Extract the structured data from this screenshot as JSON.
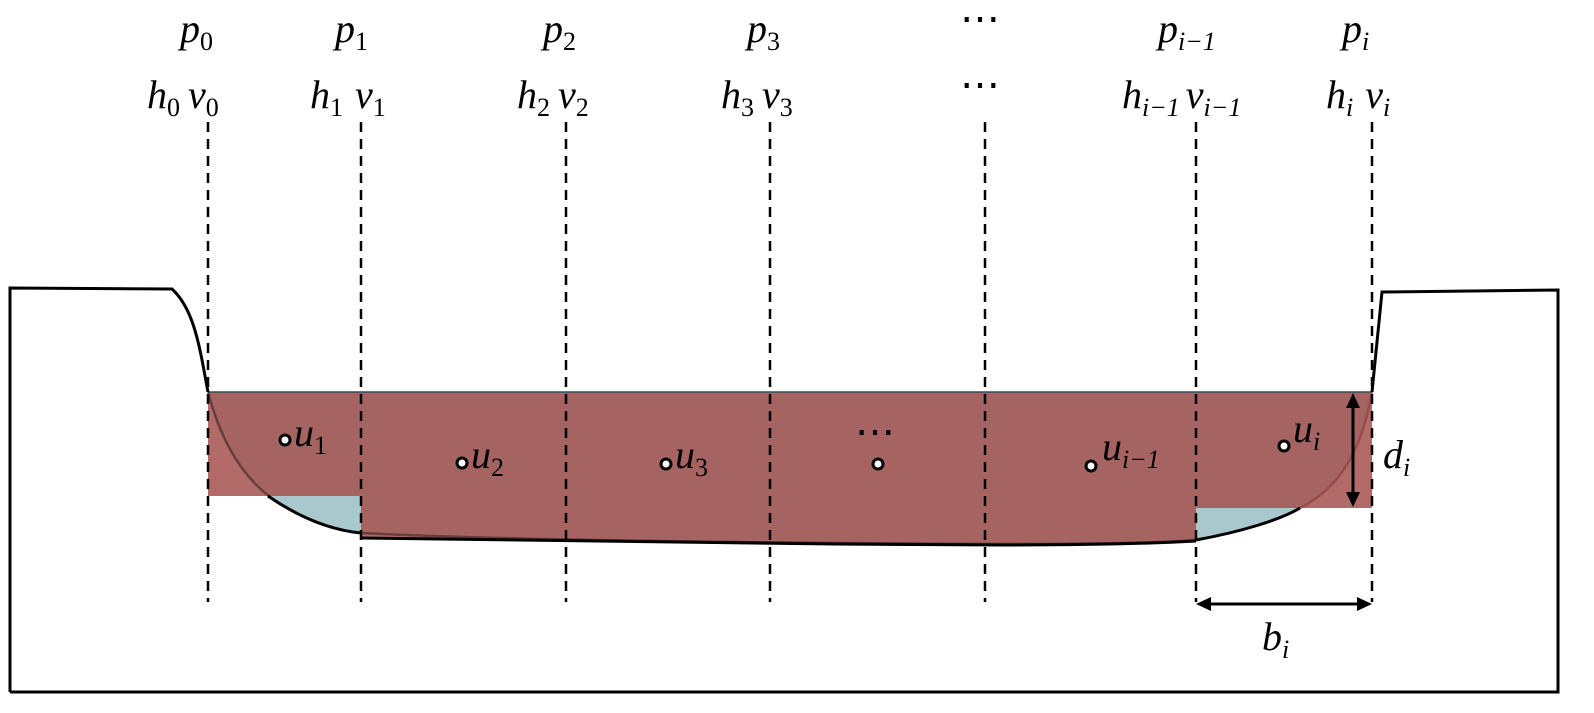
{
  "diagram": {
    "colors": {
      "subsection_fill": "#ad6a67",
      "residual_water": "#a9c8cd",
      "outline": "#000000"
    },
    "top_row": [
      {
        "base": "p",
        "sub": "0"
      },
      {
        "base": "p",
        "sub": "1"
      },
      {
        "base": "p",
        "sub": "2"
      },
      {
        "base": "p",
        "sub": "3"
      },
      {
        "base": "⋯",
        "sub": ""
      },
      {
        "base": "p",
        "sub": "i−1"
      },
      {
        "base": "p",
        "sub": "i"
      }
    ],
    "second_row": [
      {
        "h": "h",
        "h_sub": "0",
        "v": "v",
        "v_sub": "0"
      },
      {
        "h": "h",
        "h_sub": "1",
        "v": "v",
        "v_sub": "1"
      },
      {
        "h": "h",
        "h_sub": "2",
        "v": "v",
        "v_sub": "2"
      },
      {
        "h": "h",
        "h_sub": "3",
        "v": "v",
        "v_sub": "3"
      },
      {
        "ellipsis": "⋯"
      },
      {
        "h": "h",
        "h_sub": "i−1",
        "v": "v",
        "v_sub": "i−1"
      },
      {
        "h": "h",
        "h_sub": "i",
        "v": "v",
        "v_sub": "i"
      }
    ],
    "velocities": [
      {
        "base": "u",
        "sub": "1"
      },
      {
        "base": "u",
        "sub": "2"
      },
      {
        "base": "u",
        "sub": "3"
      },
      {
        "base": "⋯",
        "sub": ""
      },
      {
        "base": "u",
        "sub": "i−1"
      },
      {
        "base": "u",
        "sub": "i"
      }
    ],
    "depth_label": {
      "base": "d",
      "sub": "i"
    },
    "width_label": {
      "base": "b",
      "sub": "i"
    }
  }
}
